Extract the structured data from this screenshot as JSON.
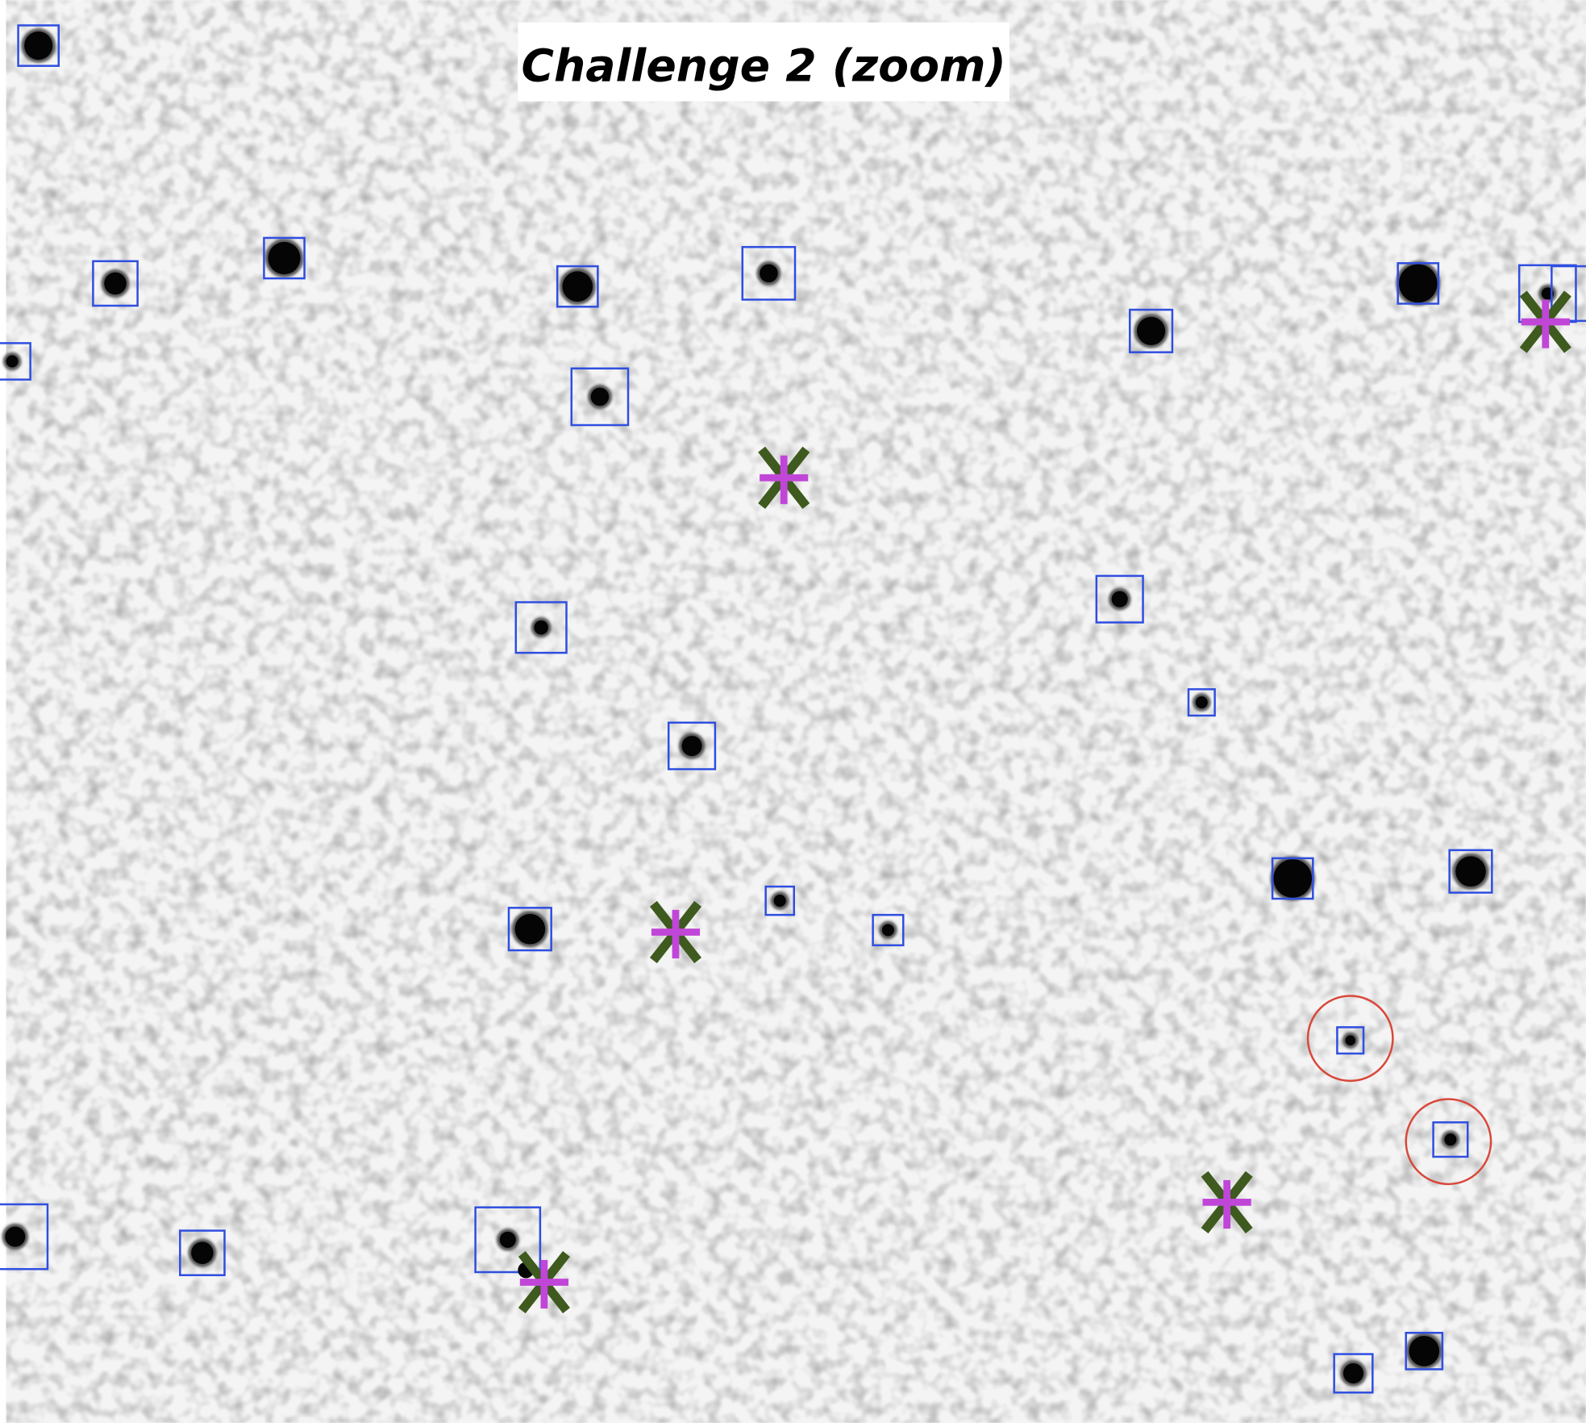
{
  "title": "Challenge 2 (zoom)"
}
